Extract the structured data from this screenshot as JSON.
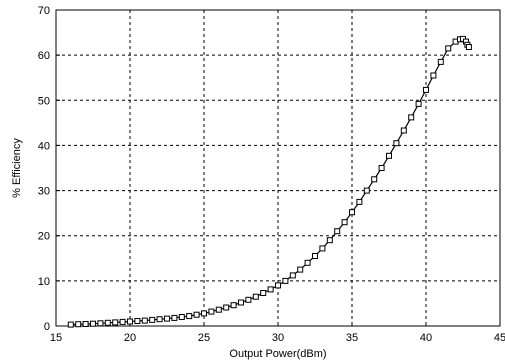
{
  "chart_data": {
    "type": "line",
    "title": "",
    "xlabel": "Output Power(dBm)",
    "ylabel": "% Efficiency",
    "xlim": [
      15,
      45
    ],
    "ylim": [
      0,
      70
    ],
    "x_ticks": [
      "15",
      "20",
      "25",
      "30",
      "35",
      "40",
      "45"
    ],
    "y_ticks": [
      "0",
      "10",
      "20",
      "30",
      "40",
      "50",
      "60",
      "70"
    ],
    "grid": true,
    "marker": "square",
    "series": [
      {
        "x": [
          16.0,
          16.5,
          17.0,
          17.5,
          18.0,
          18.5,
          19.0,
          19.5,
          20.0,
          20.5,
          21.0,
          21.5,
          22.0,
          22.5,
          23.0,
          23.5,
          24.0,
          24.5,
          25.0,
          25.5,
          26.0,
          26.5,
          27.0,
          27.5,
          28.0,
          28.5,
          29.0,
          29.5,
          30.0,
          30.5,
          31.0,
          31.5,
          32.0,
          32.5,
          33.0,
          33.5,
          34.0,
          34.5,
          35.0,
          35.5,
          36.0,
          36.5,
          37.0,
          37.5,
          38.0,
          38.5,
          39.0,
          39.5,
          40.0,
          40.5,
          41.0,
          41.5,
          42.0,
          42.3,
          42.5,
          42.7,
          42.8,
          42.9
        ],
        "y": [
          0.3,
          0.4,
          0.45,
          0.5,
          0.6,
          0.7,
          0.8,
          0.9,
          1.0,
          1.1,
          1.2,
          1.35,
          1.5,
          1.65,
          1.8,
          2.0,
          2.2,
          2.5,
          2.8,
          3.2,
          3.6,
          4.1,
          4.6,
          5.2,
          5.8,
          6.5,
          7.3,
          8.1,
          9.0,
          10.0,
          11.2,
          12.5,
          14.0,
          15.5,
          17.2,
          19.0,
          21.0,
          23.0,
          25.2,
          27.5,
          30.0,
          32.5,
          35.0,
          37.7,
          40.5,
          43.3,
          46.2,
          49.2,
          52.3,
          55.5,
          58.5,
          61.5,
          63.0,
          63.5,
          63.6,
          63.0,
          62.3,
          61.8
        ]
      }
    ]
  }
}
